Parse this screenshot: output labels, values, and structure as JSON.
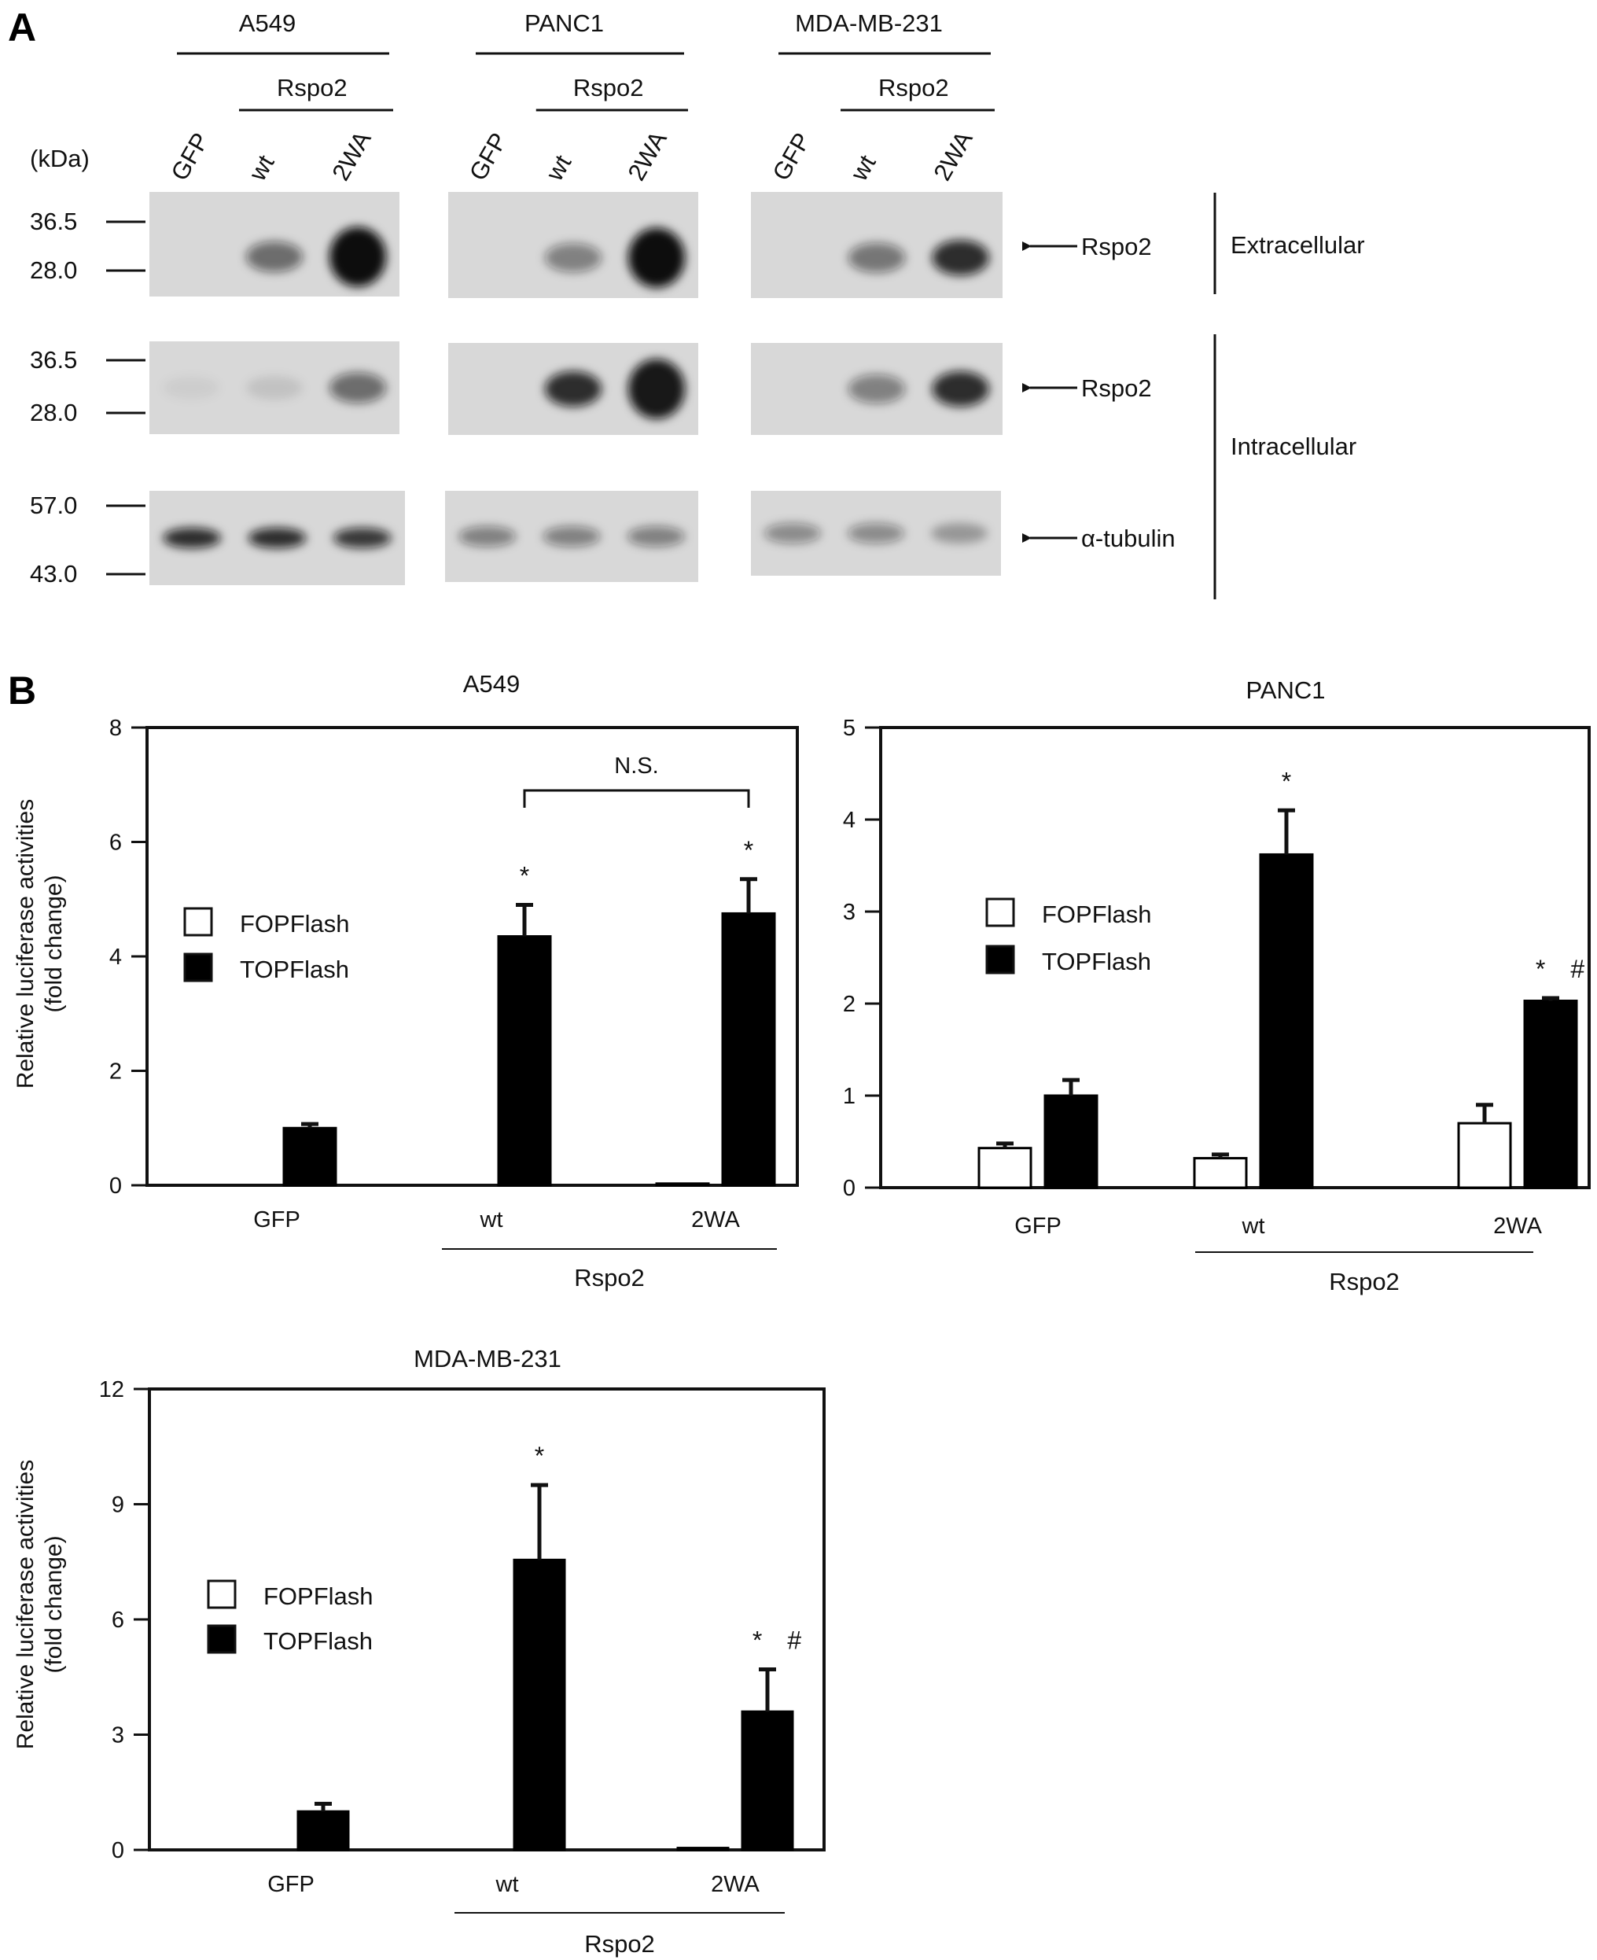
{
  "panel_a": {
    "letter": "A",
    "kda_label": "(kDa)",
    "group_label": "Rspo2",
    "cell_lines": [
      {
        "name": "A549",
        "lanes": [
          "GFP",
          "wt",
          "2WA"
        ]
      },
      {
        "name": "PANC1",
        "lanes": [
          "GFP",
          "wt",
          "2WA"
        ]
      },
      {
        "name": "MDA-MB-231",
        "lanes": [
          "GFP",
          "wt",
          "2WA"
        ]
      }
    ],
    "blots": [
      {
        "markers": [
          "36.5",
          "28.0"
        ],
        "target": "Rspo2",
        "fraction": "Extracellular"
      },
      {
        "markers": [
          "36.5",
          "28.0"
        ],
        "target": "Rspo2",
        "fraction": "Intracellular"
      },
      {
        "markers": [
          "57.0",
          "43.0"
        ],
        "target": "α-tubulin",
        "fraction": ""
      }
    ],
    "band_intensity": [
      [
        [
          0,
          0.55,
          1.0
        ],
        [
          0,
          0.45,
          1.0
        ],
        [
          0,
          0.5,
          0.85
        ]
      ],
      [
        [
          0.05,
          0.1,
          0.55
        ],
        [
          0,
          0.85,
          0.95
        ],
        [
          0,
          0.45,
          0.85
        ]
      ],
      [
        [
          0.85,
          0.85,
          0.8
        ],
        [
          0.45,
          0.45,
          0.45
        ],
        [
          0.4,
          0.4,
          0.3
        ]
      ]
    ]
  },
  "panel_b": {
    "letter": "B",
    "legend": [
      "FOPFlash",
      "TOPFlash"
    ],
    "group_label": "Rspo2",
    "colors": {
      "fop": "#ffffff",
      "top": "#000000",
      "stroke": "#000000"
    }
  },
  "chart_data": [
    {
      "type": "bar",
      "title": "A549",
      "ylabel": "Relative luciferase activities (fold change)",
      "categories": [
        "GFP",
        "wt",
        "2WA"
      ],
      "ylim": [
        0,
        8
      ],
      "yticks": [
        "0",
        "2",
        "4",
        "6",
        "8"
      ],
      "series": [
        {
          "name": "FOPFlash",
          "values": [
            0,
            0,
            0.03
          ],
          "errors": [
            0,
            0,
            0
          ]
        },
        {
          "name": "TOPFlash",
          "values": [
            1.0,
            4.35,
            4.75
          ],
          "errors": [
            0.07,
            0.55,
            0.6
          ]
        }
      ],
      "annotations": {
        "top_marks": [
          "",
          "*",
          "*"
        ],
        "bracket_label": "N.S."
      }
    },
    {
      "type": "bar",
      "title": "PANC1",
      "ylabel": "",
      "categories": [
        "GFP",
        "wt",
        "2WA"
      ],
      "ylim": [
        0,
        5
      ],
      "yticks": [
        "0",
        "1",
        "2",
        "3",
        "4",
        "5"
      ],
      "series": [
        {
          "name": "FOPFlash",
          "values": [
            0.43,
            0.32,
            0.7
          ],
          "errors": [
            0.05,
            0.04,
            0.2
          ]
        },
        {
          "name": "TOPFlash",
          "values": [
            1.0,
            3.62,
            2.03
          ],
          "errors": [
            0.17,
            0.48,
            0.03
          ]
        }
      ],
      "annotations": {
        "top_marks": [
          "",
          "*",
          "* #"
        ]
      }
    },
    {
      "type": "bar",
      "title": "MDA-MB-231",
      "ylabel": "Relative luciferase activities (fold change)",
      "categories": [
        "GFP",
        "wt",
        "2WA"
      ],
      "ylim": [
        0,
        12
      ],
      "yticks": [
        "0",
        "3",
        "6",
        "9",
        "12"
      ],
      "series": [
        {
          "name": "FOPFlash",
          "values": [
            0,
            0,
            0.05
          ],
          "errors": [
            0,
            0,
            0
          ]
        },
        {
          "name": "TOPFlash",
          "values": [
            1.0,
            7.55,
            3.6
          ],
          "errors": [
            0.2,
            1.95,
            1.1
          ]
        }
      ],
      "annotations": {
        "top_marks": [
          "",
          "*",
          "* #"
        ]
      }
    }
  ]
}
